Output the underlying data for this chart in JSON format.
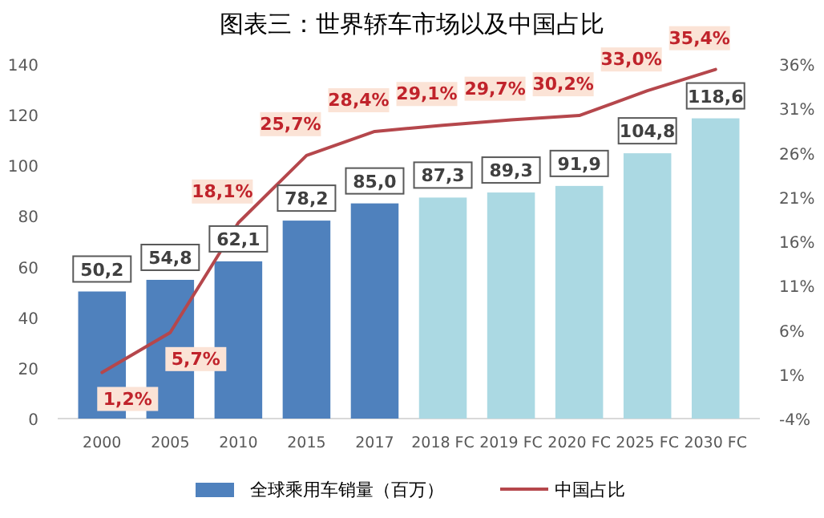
{
  "chart_data": {
    "type": "bar",
    "title": "图表三：世界轿车市场以及中国占比",
    "categories": [
      "2000",
      "2005",
      "2010",
      "2015",
      "2017",
      "2018 FC",
      "2019 FC",
      "2020 FC",
      "2025 FC",
      "2030 FC"
    ],
    "series": [
      {
        "name": "全球乘用车销量（百万）",
        "color": "#4f81bd",
        "colors": [
          "#4f81bd",
          "#4f81bd",
          "#4f81bd",
          "#4f81bd",
          "#4f81bd",
          "#abd9e3",
          "#abd9e3",
          "#abd9e3",
          "#abd9e3",
          "#abd9e3"
        ],
        "values": [
          50.2,
          54.8,
          62.1,
          78.2,
          85.0,
          87.3,
          89.3,
          91.9,
          104.8,
          118.6
        ],
        "value_labels": [
          "50,2",
          "54,8",
          "62,1",
          "78,2",
          "85,0",
          "87,3",
          "89,3",
          "91,9",
          "104,8",
          "118,6"
        ]
      },
      {
        "name": "中国占比",
        "type": "line",
        "axis": "y2",
        "color": "#b5474c",
        "values": [
          1.2,
          5.7,
          18.1,
          25.7,
          28.4,
          29.1,
          29.7,
          30.2,
          33.0,
          35.4
        ],
        "value_labels": [
          "1,2%",
          "5,7%",
          "18,1%",
          "25,7%",
          "28,4%",
          "29,1%",
          "29,7%",
          "30,2%",
          "33,0%",
          "35,4%"
        ]
      }
    ],
    "ylim": [
      0,
      140
    ],
    "yticks": [
      0,
      20,
      40,
      60,
      80,
      100,
      120,
      140
    ],
    "y2lim": [
      -4,
      36
    ],
    "y2ticks": [
      {
        "value": -4,
        "label": "-4%"
      },
      {
        "value": 1,
        "label": "1%"
      },
      {
        "value": 6,
        "label": "6%"
      },
      {
        "value": 11,
        "label": "11%"
      },
      {
        "value": 16,
        "label": "16%"
      },
      {
        "value": 21,
        "label": "21%"
      },
      {
        "value": 26,
        "label": "26%"
      },
      {
        "value": 31,
        "label": "31%"
      },
      {
        "value": 36,
        "label": "36%"
      }
    ],
    "legend": "bottom",
    "grid": false,
    "marker": "none",
    "line_style": "solid"
  }
}
